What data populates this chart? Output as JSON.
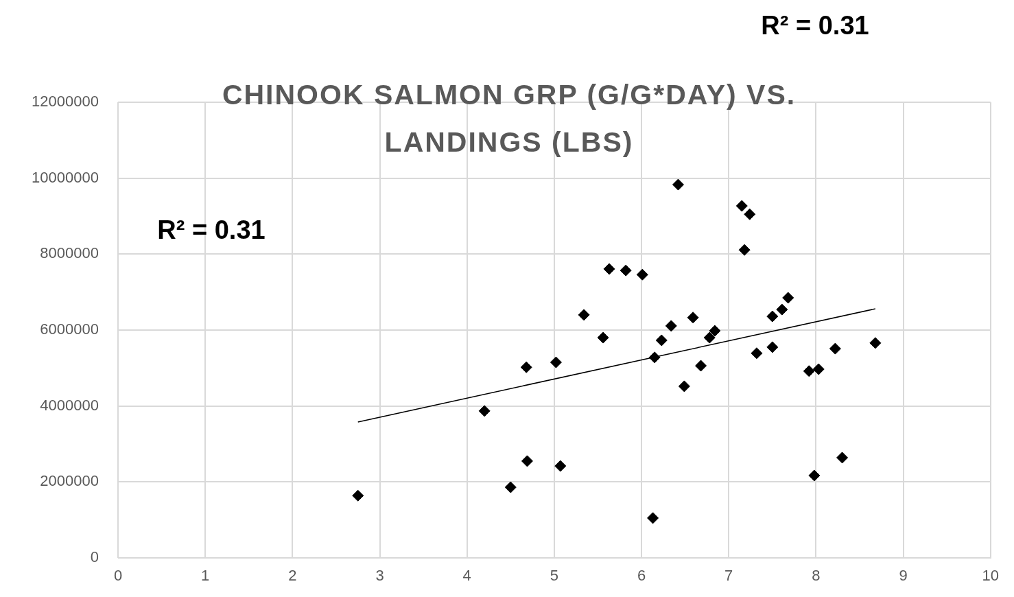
{
  "chart_data": {
    "type": "scatter",
    "title": "CHINOOK SALMON GRP (G/G*DAY) VS. LANDINGS (LBS)",
    "annotations": [
      "R² = 0.31",
      "R² = 0.31"
    ],
    "xlim": [
      0,
      10
    ],
    "xticks": [
      0,
      1,
      2,
      3,
      4,
      5,
      6,
      7,
      8,
      9,
      10
    ],
    "ylim": [
      0,
      12000000
    ],
    "yticks": [
      0,
      2000000,
      4000000,
      6000000,
      8000000,
      10000000,
      12000000
    ],
    "grid": true,
    "legend": false,
    "marker": "diamond",
    "series": [
      {
        "type": "scatter",
        "color": "#000000",
        "x": [
          2.75,
          4.2,
          4.5,
          4.68,
          4.69,
          5.02,
          5.07,
          5.34,
          5.56,
          5.63,
          5.82,
          6.01,
          6.15,
          6.13,
          6.23,
          6.34,
          6.42,
          6.49,
          6.59,
          6.68,
          6.78,
          6.84,
          7.15,
          7.24,
          7.18,
          7.32,
          7.5,
          7.5,
          7.61,
          7.68,
          7.92,
          8.03,
          7.98,
          8.22,
          8.3,
          8.68
        ],
        "values": [
          1640000,
          3870000,
          1860000,
          5020000,
          2550000,
          5150000,
          2420000,
          6400000,
          5800000,
          7610000,
          7570000,
          7460000,
          5280000,
          1050000,
          5730000,
          6110000,
          9830000,
          4520000,
          6330000,
          5060000,
          5800000,
          5980000,
          9270000,
          9050000,
          8110000,
          5390000,
          5550000,
          6360000,
          6540000,
          6850000,
          4920000,
          4970000,
          2170000,
          5510000,
          2640000,
          5660000
        ]
      },
      {
        "type": "line",
        "color": "#000000",
        "marker": "none",
        "line_style": "solid",
        "x": [
          2.75,
          8.68
        ],
        "values": [
          3580000,
          6560000
        ]
      }
    ]
  }
}
